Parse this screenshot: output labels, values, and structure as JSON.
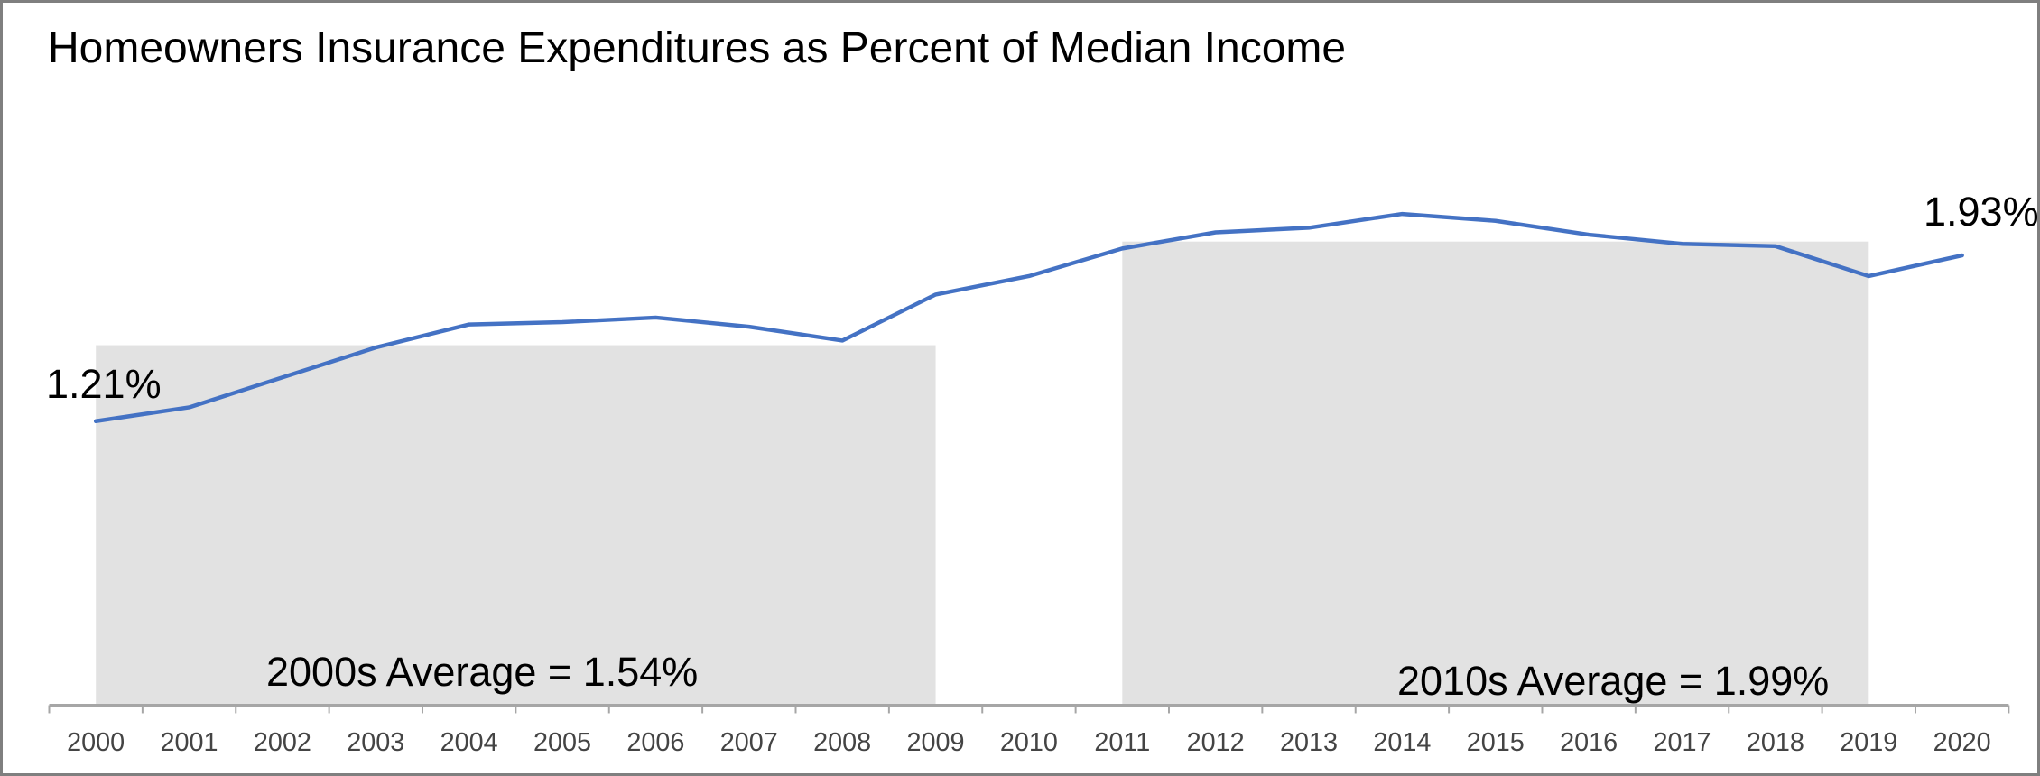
{
  "window": {
    "background_color": "#ffffff",
    "frame_border_color": "#7f7f7f"
  },
  "chart": {
    "title": "Homeowners Insurance Expenditures as Percent of Median Income"
  },
  "chart_data": {
    "type": "line",
    "title": "Homeowners Insurance Expenditures as Percent of Median Income",
    "series_name": "Homeowners insurance expenditures as percent of median income",
    "x": [
      2000,
      2001,
      2002,
      2003,
      2004,
      2005,
      2006,
      2007,
      2008,
      2009,
      2010,
      2011,
      2012,
      2013,
      2014,
      2015,
      2016,
      2017,
      2018,
      2019,
      2020
    ],
    "values": [
      1.21,
      1.27,
      1.4,
      1.53,
      1.63,
      1.64,
      1.66,
      1.62,
      1.56,
      1.76,
      1.84,
      1.96,
      2.03,
      2.05,
      2.11,
      2.08,
      2.02,
      1.98,
      1.97,
      1.84,
      1.93
    ],
    "xlabel": "",
    "ylabel": "",
    "y_axis_visible": false,
    "x_tick_labels": [
      "2000",
      "2001",
      "2002",
      "2003",
      "2004",
      "2005",
      "2006",
      "2007",
      "2008",
      "2009",
      "2010",
      "2011",
      "2012",
      "2013",
      "2014",
      "2015",
      "2016",
      "2017",
      "2018",
      "2019",
      "2020"
    ],
    "ylim": [
      0,
      2.3
    ],
    "grid": false,
    "legend": "none",
    "line_color": "#4472c4",
    "axis_color": "#a6a6a6",
    "tick_label_color": "#444444",
    "annotations": {
      "start_label": {
        "text": "1.21%",
        "year": 2000,
        "value": 1.21
      },
      "end_label": {
        "text": "1.93%",
        "year": 2020,
        "value": 1.93
      }
    },
    "bands": [
      {
        "label": "2000s Average = 1.54%",
        "value": 1.54,
        "from_year": 2000,
        "to_year": 2009,
        "fill": "#e2e2e2"
      },
      {
        "label": "2010s Average = 1.99%",
        "value": 1.99,
        "from_year": 2011,
        "to_year": 2019,
        "fill": "#e2e2e2"
      }
    ]
  }
}
